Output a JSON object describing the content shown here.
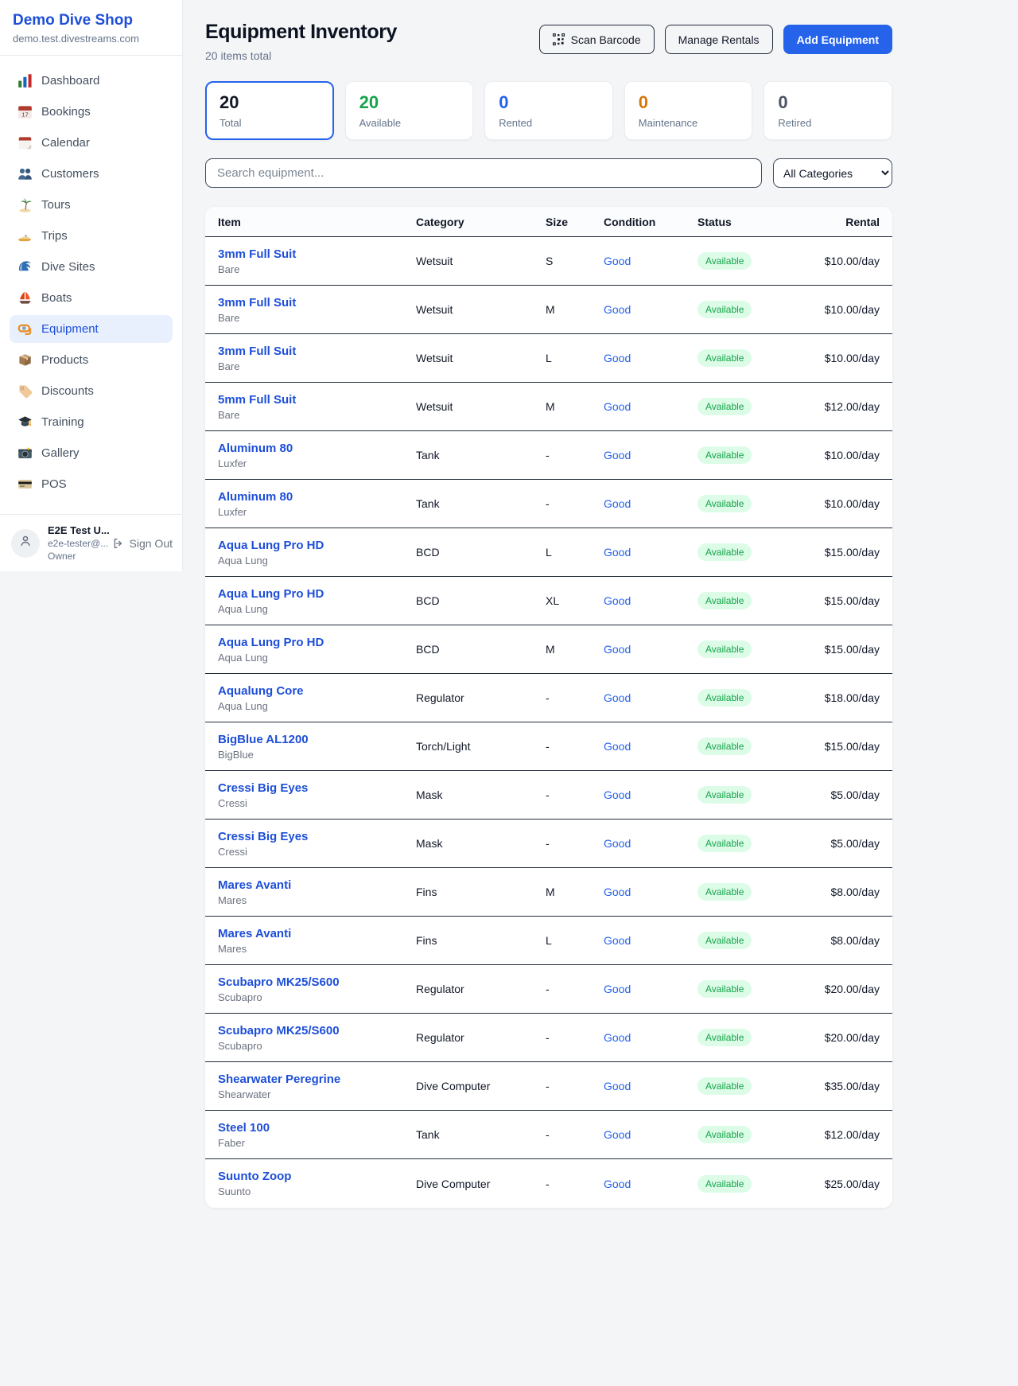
{
  "sidebar": {
    "brand": "Demo Dive Shop",
    "domain": "demo.test.divestreams.com",
    "items": [
      {
        "icon": "chart-bar",
        "label": "Dashboard",
        "active": false
      },
      {
        "icon": "calendar-date",
        "label": "Bookings",
        "active": false
      },
      {
        "icon": "calendar",
        "label": "Calendar",
        "active": false
      },
      {
        "icon": "users",
        "label": "Customers",
        "active": false
      },
      {
        "icon": "palm-tree",
        "label": "Tours",
        "active": false
      },
      {
        "icon": "speedboat",
        "label": "Trips",
        "active": false
      },
      {
        "icon": "wave",
        "label": "Dive Sites",
        "active": false
      },
      {
        "icon": "sailboat",
        "label": "Boats",
        "active": false
      },
      {
        "icon": "dive-mask",
        "label": "Equipment",
        "active": true
      },
      {
        "icon": "package",
        "label": "Products",
        "active": false
      },
      {
        "icon": "tag",
        "label": "Discounts",
        "active": false
      },
      {
        "icon": "grad-cap",
        "label": "Training",
        "active": false
      },
      {
        "icon": "camera",
        "label": "Gallery",
        "active": false
      },
      {
        "icon": "credit-card",
        "label": "POS",
        "active": false
      }
    ],
    "user": {
      "name": "E2E Test U...",
      "email": "e2e-tester@...",
      "role": "Owner",
      "sign_out": "Sign Out"
    }
  },
  "header": {
    "title": "Equipment Inventory",
    "subtitle": "20 items total",
    "scan_barcode": "Scan Barcode",
    "manage_rentals": "Manage Rentals",
    "add_equipment": "Add Equipment"
  },
  "stats": [
    {
      "value": "20",
      "label": "Total",
      "color": "#111827",
      "selected": true
    },
    {
      "value": "20",
      "label": "Available",
      "color": "#16a34a",
      "selected": false
    },
    {
      "value": "0",
      "label": "Rented",
      "color": "#2563eb",
      "selected": false
    },
    {
      "value": "0",
      "label": "Maintenance",
      "color": "#d97706",
      "selected": false
    },
    {
      "value": "0",
      "label": "Retired",
      "color": "#4b5563",
      "selected": false
    }
  ],
  "filters": {
    "search_placeholder": "Search equipment...",
    "category_selected": "All Categories"
  },
  "table": {
    "headers": [
      "Item",
      "Category",
      "Size",
      "Condition",
      "Status",
      "Rental"
    ],
    "rows": [
      {
        "item": "3mm Full Suit",
        "brand": "Bare",
        "category": "Wetsuit",
        "size": "S",
        "condition": "Good",
        "status": "Available",
        "rental": "$10.00/day"
      },
      {
        "item": "3mm Full Suit",
        "brand": "Bare",
        "category": "Wetsuit",
        "size": "M",
        "condition": "Good",
        "status": "Available",
        "rental": "$10.00/day"
      },
      {
        "item": "3mm Full Suit",
        "brand": "Bare",
        "category": "Wetsuit",
        "size": "L",
        "condition": "Good",
        "status": "Available",
        "rental": "$10.00/day"
      },
      {
        "item": "5mm Full Suit",
        "brand": "Bare",
        "category": "Wetsuit",
        "size": "M",
        "condition": "Good",
        "status": "Available",
        "rental": "$12.00/day"
      },
      {
        "item": "Aluminum 80",
        "brand": "Luxfer",
        "category": "Tank",
        "size": "-",
        "condition": "Good",
        "status": "Available",
        "rental": "$10.00/day"
      },
      {
        "item": "Aluminum 80",
        "brand": "Luxfer",
        "category": "Tank",
        "size": "-",
        "condition": "Good",
        "status": "Available",
        "rental": "$10.00/day"
      },
      {
        "item": "Aqua Lung Pro HD",
        "brand": "Aqua Lung",
        "category": "BCD",
        "size": "L",
        "condition": "Good",
        "status": "Available",
        "rental": "$15.00/day"
      },
      {
        "item": "Aqua Lung Pro HD",
        "brand": "Aqua Lung",
        "category": "BCD",
        "size": "XL",
        "condition": "Good",
        "status": "Available",
        "rental": "$15.00/day"
      },
      {
        "item": "Aqua Lung Pro HD",
        "brand": "Aqua Lung",
        "category": "BCD",
        "size": "M",
        "condition": "Good",
        "status": "Available",
        "rental": "$15.00/day"
      },
      {
        "item": "Aqualung Core",
        "brand": "Aqua Lung",
        "category": "Regulator",
        "size": "-",
        "condition": "Good",
        "status": "Available",
        "rental": "$18.00/day"
      },
      {
        "item": "BigBlue AL1200",
        "brand": "BigBlue",
        "category": "Torch/Light",
        "size": "-",
        "condition": "Good",
        "status": "Available",
        "rental": "$15.00/day"
      },
      {
        "item": "Cressi Big Eyes",
        "brand": "Cressi",
        "category": "Mask",
        "size": "-",
        "condition": "Good",
        "status": "Available",
        "rental": "$5.00/day"
      },
      {
        "item": "Cressi Big Eyes",
        "brand": "Cressi",
        "category": "Mask",
        "size": "-",
        "condition": "Good",
        "status": "Available",
        "rental": "$5.00/day"
      },
      {
        "item": "Mares Avanti",
        "brand": "Mares",
        "category": "Fins",
        "size": "M",
        "condition": "Good",
        "status": "Available",
        "rental": "$8.00/day"
      },
      {
        "item": "Mares Avanti",
        "brand": "Mares",
        "category": "Fins",
        "size": "L",
        "condition": "Good",
        "status": "Available",
        "rental": "$8.00/day"
      },
      {
        "item": "Scubapro MK25/S600",
        "brand": "Scubapro",
        "category": "Regulator",
        "size": "-",
        "condition": "Good",
        "status": "Available",
        "rental": "$20.00/day"
      },
      {
        "item": "Scubapro MK25/S600",
        "brand": "Scubapro",
        "category": "Regulator",
        "size": "-",
        "condition": "Good",
        "status": "Available",
        "rental": "$20.00/day"
      },
      {
        "item": "Shearwater Peregrine",
        "brand": "Shearwater",
        "category": "Dive Computer",
        "size": "-",
        "condition": "Good",
        "status": "Available",
        "rental": "$35.00/day"
      },
      {
        "item": "Steel 100",
        "brand": "Faber",
        "category": "Tank",
        "size": "-",
        "condition": "Good",
        "status": "Available",
        "rental": "$12.00/day"
      },
      {
        "item": "Suunto Zoop",
        "brand": "Suunto",
        "category": "Dive Computer",
        "size": "-",
        "condition": "Good",
        "status": "Available",
        "rental": "$25.00/day"
      }
    ]
  }
}
